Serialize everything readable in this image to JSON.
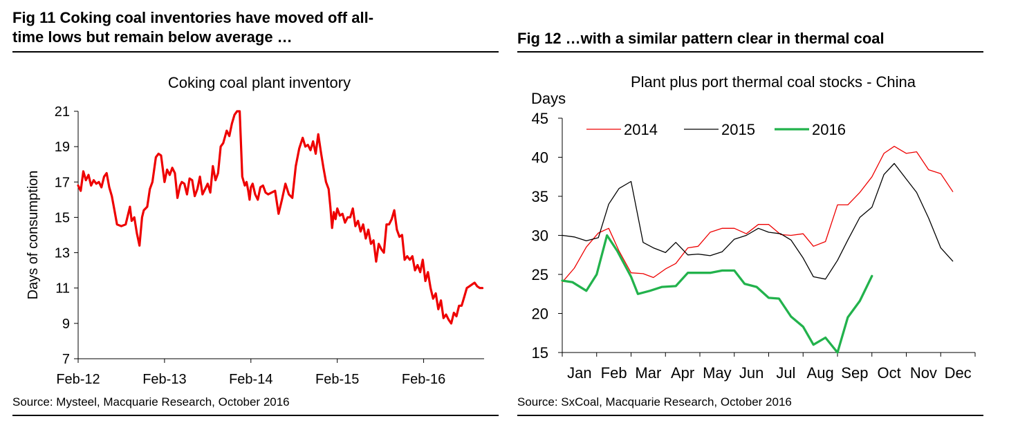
{
  "figures": {
    "left": {
      "fig_title": "Fig 11    Coking coal inventories have moved off all-\ntime lows but remain below average …",
      "source": "Source: Mysteel, Macquarie Research, October 2016"
    },
    "right": {
      "fig_title": "Fig 12    …with a similar pattern clear in thermal coal",
      "source": "Source: SxCoal, Macquarie Research, October 2016"
    }
  },
  "chart_data": [
    {
      "type": "line",
      "title": "Coking coal plant inventory",
      "ylabel": "Days of consumption",
      "xlabel": "",
      "ylim": [
        7,
        21
      ],
      "yticks": [
        7,
        9,
        11,
        13,
        15,
        17,
        19,
        21
      ],
      "xlim": [
        0,
        4.7
      ],
      "xticks": [
        0,
        1,
        2,
        3,
        4
      ],
      "xtick_labels": [
        "Feb-12",
        "Feb-13",
        "Feb-14",
        "Feb-15",
        "Feb-16"
      ],
      "grid": false,
      "legend": "none",
      "color": "#ee0000",
      "series": [
        {
          "x": [
            0,
            0.03,
            0.06,
            0.09,
            0.12,
            0.15,
            0.18,
            0.21,
            0.24,
            0.27,
            0.3,
            0.33,
            0.36,
            0.39,
            0.42,
            0.45,
            0.5,
            0.55,
            0.6,
            0.62,
            0.65,
            0.68,
            0.71,
            0.74,
            0.76,
            0.8,
            0.83,
            0.86,
            0.9,
            0.93,
            0.96,
            1.0,
            1.03,
            1.06,
            1.09,
            1.12,
            1.15,
            1.18,
            1.2,
            1.23,
            1.26,
            1.29,
            1.32,
            1.35,
            1.38,
            1.41,
            1.44,
            1.47,
            1.5,
            1.53,
            1.56,
            1.59,
            1.62,
            1.65,
            1.68,
            1.72,
            1.75,
            1.78,
            1.81,
            1.84,
            1.87,
            1.9,
            1.93,
            1.95,
            1.97,
            1.985,
            2.0,
            2.02,
            2.05,
            2.08,
            2.11,
            2.14,
            2.17,
            2.2,
            2.24,
            2.28,
            2.32,
            2.36,
            2.4,
            2.44,
            2.48,
            2.52,
            2.56,
            2.6,
            2.63,
            2.66,
            2.69,
            2.72,
            2.75,
            2.78,
            2.81,
            2.84,
            2.87,
            2.9,
            2.92,
            2.94,
            2.96,
            2.98,
            3.0,
            3.03,
            3.06,
            3.09,
            3.12,
            3.15,
            3.18,
            3.21,
            3.24,
            3.27,
            3.3,
            3.33,
            3.36,
            3.39,
            3.42,
            3.45,
            3.48,
            3.51,
            3.54,
            3.57,
            3.6,
            3.63,
            3.66,
            3.69,
            3.72,
            3.75,
            3.78,
            3.81,
            3.84,
            3.87,
            3.9,
            3.93,
            3.96,
            3.99,
            4.02,
            4.05,
            4.08,
            4.11,
            4.14,
            4.17,
            4.2,
            4.23,
            4.26,
            4.29,
            4.32,
            4.35,
            4.38,
            4.41,
            4.44,
            4.47,
            4.5,
            4.53,
            4.56,
            4.59,
            4.62,
            4.65,
            4.68
          ],
          "y": [
            16.8,
            16.5,
            17.6,
            17.1,
            17.4,
            16.8,
            17.1,
            16.9,
            17.0,
            16.7,
            17.3,
            17.5,
            16.7,
            16.2,
            15.4,
            14.6,
            14.5,
            14.6,
            15.6,
            14.8,
            15.0,
            14.1,
            13.4,
            15.0,
            15.4,
            15.6,
            16.6,
            17.0,
            18.4,
            18.6,
            18.5,
            17.0,
            17.7,
            17.4,
            17.8,
            17.5,
            16.1,
            16.8,
            17.0,
            16.9,
            16.3,
            17.2,
            17.1,
            16.2,
            16.6,
            17.3,
            16.3,
            16.6,
            16.9,
            16.4,
            17.9,
            17.1,
            17.5,
            19.0,
            19.2,
            19.9,
            19.6,
            20.3,
            20.8,
            21.0,
            21.0,
            17.3,
            16.8,
            17.0,
            16.5,
            16.0,
            16.7,
            16.9,
            16.3,
            16.0,
            16.7,
            16.8,
            16.4,
            16.3,
            16.4,
            16.5,
            15.2,
            16.0,
            16.9,
            16.3,
            16.1,
            17.9,
            18.9,
            19.5,
            19.0,
            19.1,
            18.8,
            19.3,
            18.6,
            19.7,
            18.7,
            17.8,
            17.0,
            16.6,
            15.6,
            14.4,
            15.3,
            14.9,
            15.5,
            15.1,
            15.2,
            14.7,
            15.0,
            15.0,
            15.5,
            14.5,
            14.8,
            14.2,
            14.6,
            13.8,
            14.3,
            13.5,
            13.7,
            12.5,
            13.5,
            13.2,
            13.0,
            14.6,
            14.6,
            14.9,
            15.4,
            14.3,
            13.9,
            14.0,
            12.6,
            12.8,
            12.6,
            12.8,
            12.0,
            12.3,
            11.9,
            12.6,
            11.4,
            11.9,
            11.0,
            10.4,
            10.7,
            9.8,
            10.3,
            9.3,
            9.5,
            9.2,
            9.0,
            9.6,
            9.4,
            10.0,
            10.0,
            10.5,
            11.0,
            11.1,
            11.2,
            11.3,
            11.1,
            11.0,
            11.0
          ]
        }
      ]
    },
    {
      "type": "line",
      "title": "Plant plus port thermal coal stocks - China",
      "ylabel": "Days",
      "xlabel": "",
      "ylim": [
        15,
        45
      ],
      "yticks": [
        15,
        20,
        25,
        30,
        35,
        40,
        45
      ],
      "xlim": [
        0,
        12
      ],
      "categories": [
        "Jan",
        "Feb",
        "Mar",
        "Apr",
        "May",
        "Jun",
        "Jul",
        "Aug",
        "Sep",
        "Oct",
        "Nov",
        "Dec"
      ],
      "grid": false,
      "legend": "top-left",
      "series": [
        {
          "name": "2014",
          "color": "#ee0000",
          "width": 1.3,
          "x": [
            0,
            0.35,
            0.7,
            1.05,
            1.35,
            1.65,
            2.0,
            2.35,
            2.65,
            3.0,
            3.3,
            3.65,
            3.95,
            4.3,
            4.65,
            5.0,
            5.35,
            5.7,
            6.0,
            6.35,
            6.65,
            7.0,
            7.3,
            7.65,
            8.0,
            8.3,
            8.65,
            9.0,
            9.35,
            9.65,
            10.0,
            10.3,
            10.65,
            11.0,
            11.35
          ],
          "y": [
            24,
            25.8,
            28.5,
            30.3,
            30.9,
            28.0,
            25.2,
            25.1,
            24.6,
            25.7,
            26.4,
            28.4,
            28.6,
            30.4,
            30.9,
            30.9,
            30.2,
            31.4,
            31.4,
            30.1,
            30.0,
            30.2,
            28.6,
            29.2,
            33.9,
            33.9,
            35.5,
            37.5,
            40.5,
            41.4,
            40.5,
            40.7,
            38.4,
            37.9,
            35.6
          ]
        },
        {
          "name": "2015",
          "color": "#000000",
          "width": 1.3,
          "x": [
            0,
            0.35,
            0.7,
            1.05,
            1.35,
            1.65,
            2.0,
            2.35,
            2.65,
            3.0,
            3.3,
            3.65,
            3.95,
            4.3,
            4.65,
            5.0,
            5.35,
            5.7,
            6.0,
            6.35,
            6.65,
            7.0,
            7.3,
            7.65,
            8.0,
            8.3,
            8.65,
            9.0,
            9.35,
            9.65,
            10.0,
            10.3,
            10.65,
            11.0,
            11.35
          ],
          "y": [
            30.0,
            29.8,
            29.3,
            29.7,
            34.0,
            36.0,
            36.9,
            29.1,
            28.4,
            27.8,
            29.1,
            27.5,
            27.6,
            27.4,
            27.9,
            29.5,
            30.0,
            30.9,
            30.4,
            30.2,
            29.4,
            27.1,
            24.7,
            24.4,
            26.8,
            29.4,
            32.3,
            33.6,
            37.8,
            39.2,
            37.2,
            35.5,
            32.2,
            28.4,
            26.7
          ]
        },
        {
          "name": "2016",
          "color": "#22b24c",
          "width": 3.3,
          "x": [
            0,
            0.3,
            0.7,
            1.0,
            1.3,
            1.6,
            2.0,
            2.2,
            2.55,
            2.9,
            3.3,
            3.65,
            3.95,
            4.3,
            4.65,
            5.0,
            5.3,
            5.65,
            6.0,
            6.3,
            6.65,
            7.0,
            7.3,
            7.65,
            8.0,
            8.3,
            8.65,
            9.0
          ],
          "y": [
            24.2,
            24.0,
            22.9,
            25.0,
            30.0,
            28.0,
            24.7,
            22.5,
            22.9,
            23.4,
            23.5,
            25.2,
            25.2,
            25.2,
            25.5,
            25.5,
            23.8,
            23.4,
            22.0,
            21.9,
            19.6,
            18.3,
            16.0,
            16.9,
            14.9,
            19.5,
            21.6,
            24.8
          ]
        }
      ]
    }
  ]
}
